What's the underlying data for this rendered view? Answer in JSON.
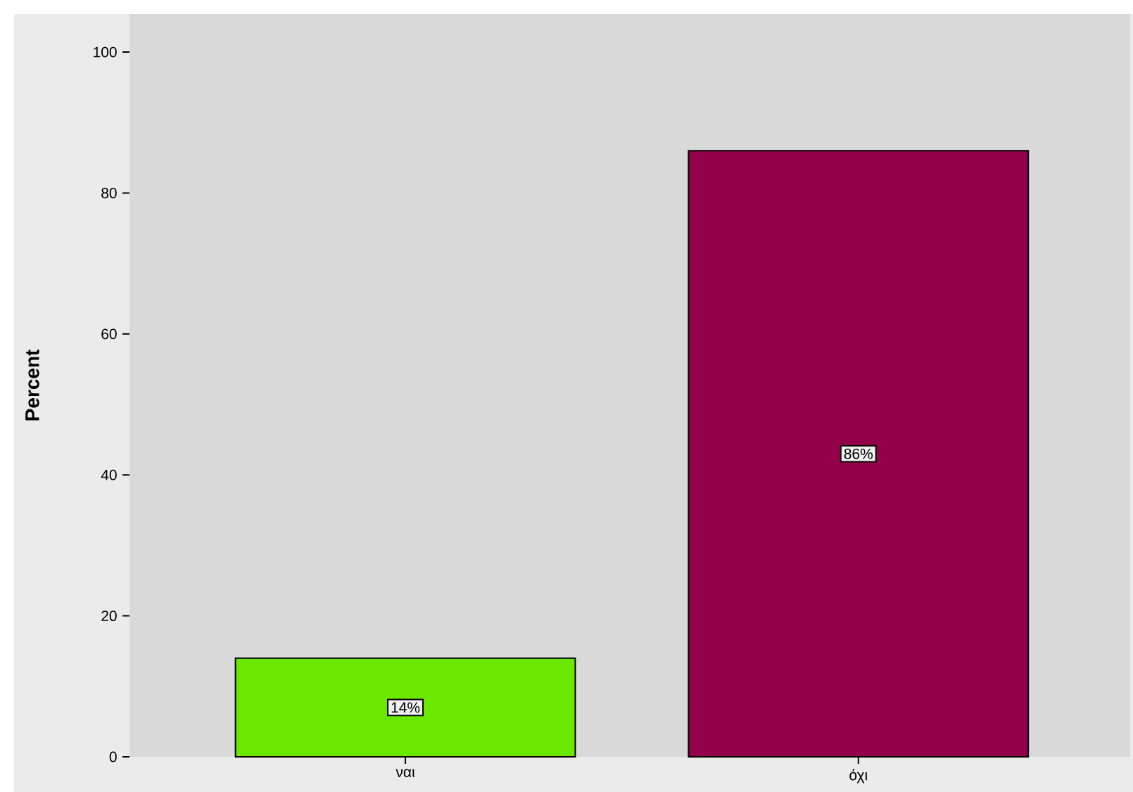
{
  "chart_data": {
    "type": "bar",
    "ylabel": "Percent",
    "categories": [
      "ναι",
      "όχι"
    ],
    "values": [
      14,
      86
    ],
    "colors": [
      "#6be800",
      "#94004a"
    ],
    "value_labels": [
      "14%",
      "86%"
    ],
    "ylim": [
      0,
      105.4
    ],
    "yticks": [
      0,
      20,
      40,
      60,
      80,
      100
    ],
    "grid": false
  }
}
